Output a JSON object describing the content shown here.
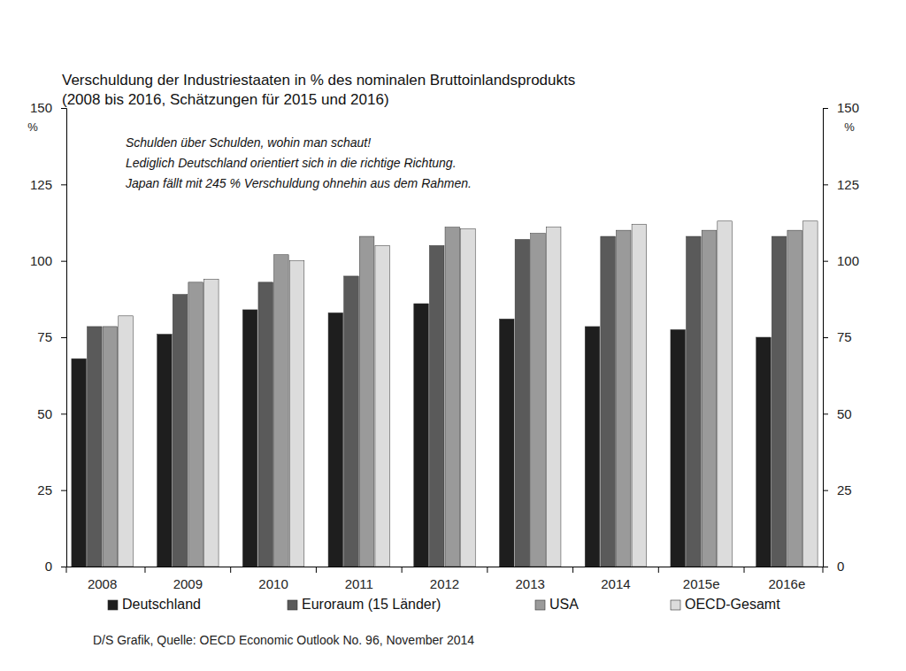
{
  "chart_data": {
    "type": "bar",
    "title": "Verschuldung der Industriestaaten in % des nominalen Bruttoinlandsprodukts",
    "subtitle": "(2008 bis 2016, Schätzungen für 2015 und 2016)",
    "annotations": [
      "Schulden über Schulden, wohin man schaut!",
      "Lediglich Deutschland orientiert sich in die richtige Richtung.",
      "Japan fällt mit 245 % Verschuldung ohnehin aus dem Rahmen."
    ],
    "source": "D/S Grafik, Quelle: OECD Economic Outlook No. 96, November 2014",
    "ylabel": "%",
    "y2label": "%",
    "categories": [
      "2008",
      "2009",
      "2010",
      "2011",
      "2012",
      "2013",
      "2014",
      "2015e",
      "2016e"
    ],
    "series": [
      {
        "name": "Deutschland",
        "color": "#1e1e1e",
        "values": [
          68,
          76,
          84,
          83,
          86,
          81,
          78.5,
          77.5,
          75
        ]
      },
      {
        "name": "Euroraum (15 Länder)",
        "color": "#5a5a5a",
        "values": [
          78.5,
          89,
          93,
          95,
          105,
          107,
          108,
          108,
          108
        ]
      },
      {
        "name": "USA",
        "color": "#9a9a9a",
        "values": [
          78.5,
          93,
          102,
          108,
          111,
          109,
          110,
          110,
          110
        ]
      },
      {
        "name": "OECD-Gesamt",
        "color": "#dcdcdc",
        "values": [
          82,
          94,
          100,
          105,
          110.5,
          111,
          112,
          113,
          113
        ]
      }
    ],
    "ylim": [
      0,
      150
    ],
    "yticks": [
      0,
      25,
      50,
      75,
      100,
      125,
      150
    ],
    "y2lim": [
      0,
      150
    ],
    "y2ticks": [
      0,
      25,
      50,
      75,
      100,
      125,
      150
    ],
    "grid": false,
    "legend": "bottom"
  }
}
